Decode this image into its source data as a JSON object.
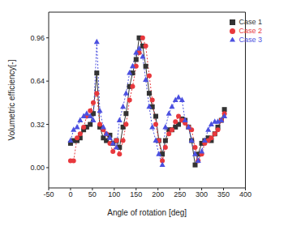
{
  "chart_data": {
    "type": "line",
    "x_label": "Angle of rotation [deg]",
    "y_label": "Volumetric efficiency[-]",
    "x": [
      0,
      7,
      15,
      22,
      30,
      37,
      45,
      52,
      60,
      67,
      75,
      82,
      90,
      97,
      105,
      112,
      120,
      127,
      135,
      142,
      150,
      157,
      165,
      172,
      180,
      187,
      195,
      202,
      210,
      217,
      225,
      232,
      240,
      247,
      255,
      262,
      270,
      277,
      285,
      292,
      300,
      307,
      315,
      322,
      330,
      337,
      345,
      352
    ],
    "series": [
      {
        "name": "Case 1",
        "color": "#333333",
        "marker": "square",
        "line_style": "solid",
        "values": [
          0.18,
          0.2,
          0.2,
          0.22,
          0.28,
          0.3,
          0.32,
          0.4,
          0.7,
          0.3,
          0.22,
          0.2,
          0.24,
          0.18,
          0.2,
          0.15,
          0.3,
          0.4,
          0.6,
          0.7,
          0.8,
          0.96,
          0.9,
          0.75,
          0.55,
          0.45,
          0.38,
          0.2,
          0.1,
          0.2,
          0.28,
          0.28,
          0.3,
          0.32,
          0.36,
          0.35,
          0.3,
          0.2,
          0.02,
          0.1,
          0.18,
          0.2,
          0.22,
          0.2,
          0.25,
          0.3,
          0.35,
          0.43
        ]
      },
      {
        "name": "Case 2",
        "color": "#e8383d",
        "marker": "circle",
        "line_style": "dotted",
        "values": [
          0.05,
          0.05,
          0.22,
          0.25,
          0.3,
          0.38,
          0.42,
          0.48,
          0.55,
          0.32,
          0.28,
          0.25,
          0.18,
          0.12,
          0.2,
          0.1,
          0.2,
          0.32,
          0.5,
          0.6,
          0.75,
          0.85,
          0.96,
          0.9,
          0.68,
          0.5,
          0.32,
          0.2,
          0.05,
          0.15,
          0.25,
          0.28,
          0.34,
          0.38,
          0.35,
          0.33,
          0.3,
          0.28,
          0.15,
          0.05,
          0.1,
          0.18,
          0.2,
          0.22,
          0.25,
          0.28,
          0.35,
          0.4
        ]
      },
      {
        "name": "Case 3",
        "color": "#4b50e0",
        "marker": "triangle",
        "line_style": "dotted",
        "values": [
          0.2,
          0.28,
          0.3,
          0.35,
          0.38,
          0.4,
          0.38,
          0.35,
          0.93,
          0.42,
          0.3,
          0.25,
          0.22,
          0.18,
          0.15,
          0.35,
          0.45,
          0.55,
          0.7,
          0.75,
          0.85,
          0.88,
          0.82,
          0.65,
          0.45,
          0.3,
          0.2,
          0.1,
          0.02,
          0.3,
          0.4,
          0.45,
          0.5,
          0.52,
          0.5,
          0.35,
          0.3,
          0.2,
          0.1,
          0.05,
          0.12,
          0.2,
          0.28,
          0.32,
          0.34,
          0.34,
          0.35,
          0.38
        ]
      }
    ],
    "xlim": [
      -50,
      400
    ],
    "xticks": [
      -50,
      0,
      50,
      100,
      150,
      200,
      250,
      300,
      350,
      400
    ],
    "ylim": [
      -0.15,
      1.15
    ],
    "yticks": [
      {
        "value": 0,
        "label": "0.00"
      },
      0.32,
      0.64,
      0.96
    ],
    "legend": "upper right",
    "grid": false
  }
}
